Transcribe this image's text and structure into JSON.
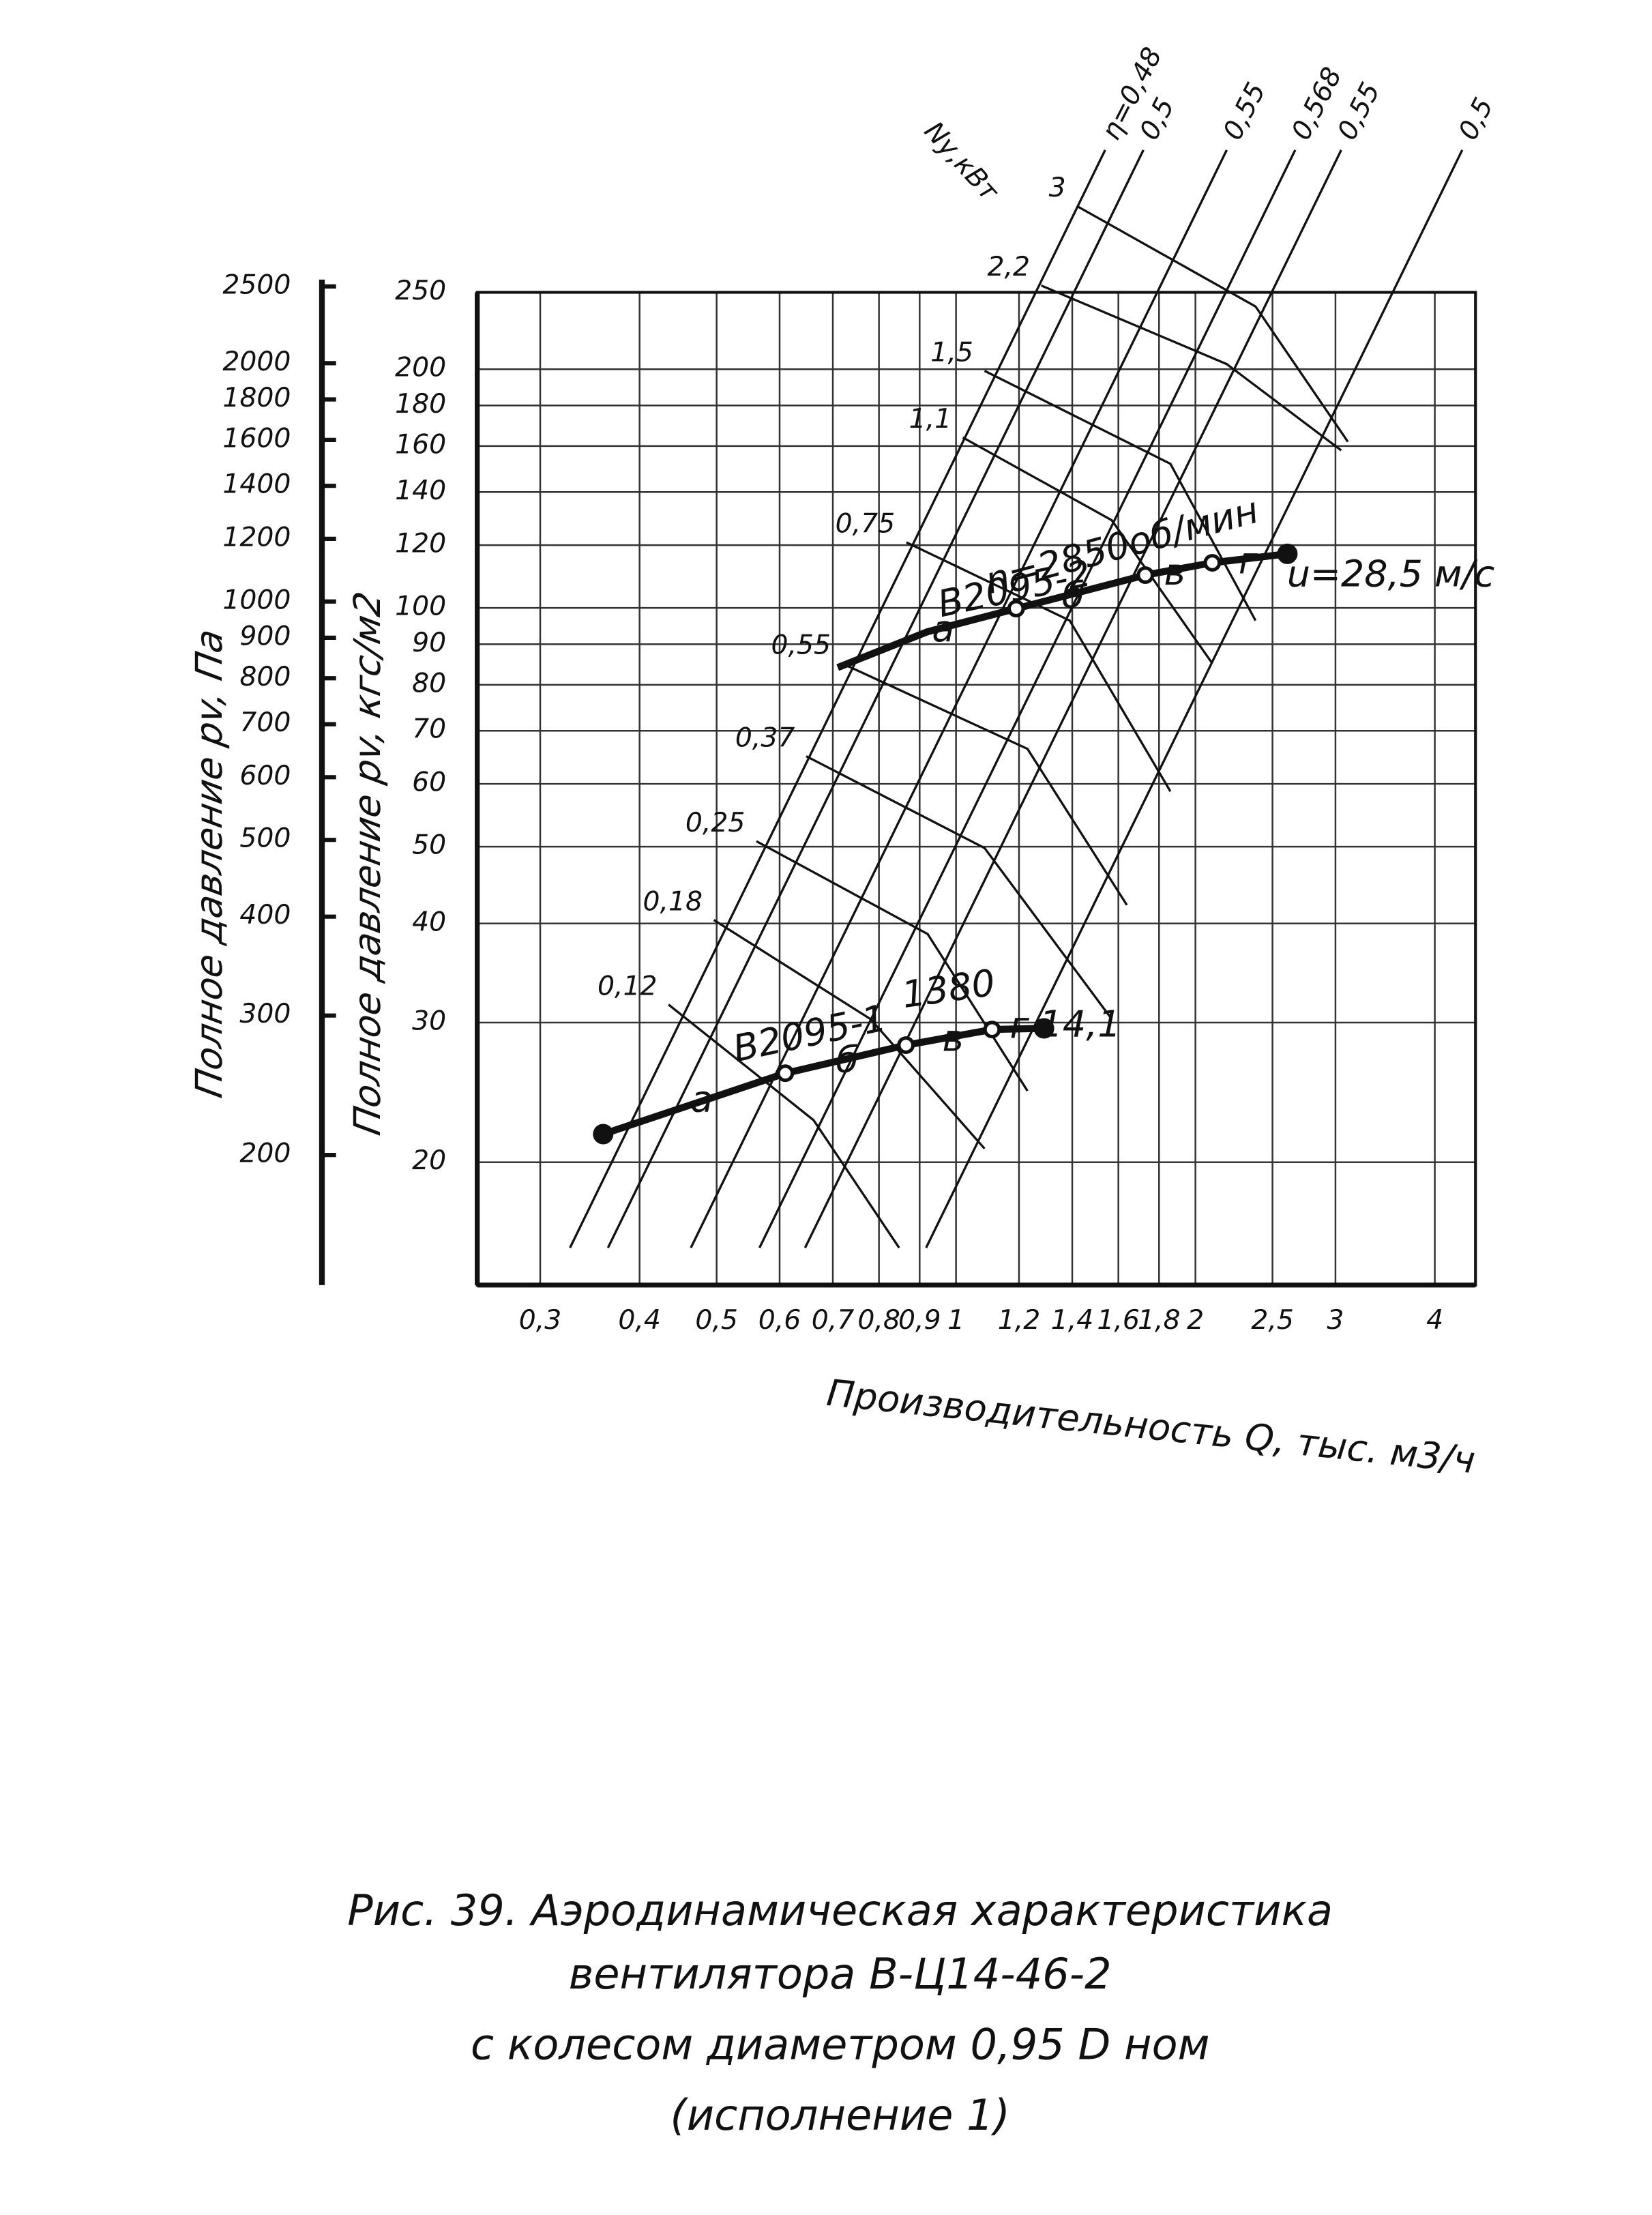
{
  "chart_data": {
    "type": "line",
    "xscale": "log",
    "yscale": "log",
    "grid": true,
    "xlabel": "Производительность  Q, тыс. м3/ч",
    "ylabel": "Полное  давление pv, кгс/м2",
    "y2label": "Полное  давление pv, Па",
    "power_axis_label": "Nу,кВт",
    "xlim": [
      0.25,
      4.5
    ],
    "ylim": [
      14,
      250
    ],
    "y2lim": [
      137,
      2550
    ],
    "xticks": [
      {
        "value": 0.3,
        "label": "0,3"
      },
      {
        "value": 0.4,
        "label": "0,4"
      },
      {
        "value": 0.5,
        "label": "0,5"
      },
      {
        "value": 0.6,
        "label": "0,6"
      },
      {
        "value": 0.7,
        "label": "0,7"
      },
      {
        "value": 0.8,
        "label": "0,8"
      },
      {
        "value": 0.9,
        "label": "0,9"
      },
      1,
      {
        "value": 1.2,
        "label": "1,2"
      },
      {
        "value": 1.4,
        "label": "1,4"
      },
      {
        "value": 1.6,
        "label": "1,6"
      },
      {
        "value": 1.8,
        "label": "1,8"
      },
      2,
      {
        "value": 2.5,
        "label": "2,5"
      },
      3,
      4
    ],
    "yticks": [
      20,
      30,
      40,
      50,
      60,
      70,
      80,
      90,
      100,
      120,
      140,
      160,
      180,
      200,
      250
    ],
    "y2ticks": [
      200,
      300,
      400,
      500,
      600,
      700,
      800,
      900,
      1000,
      1200,
      1400,
      1600,
      1800,
      2000,
      2500
    ],
    "series": [
      {
        "name": "В2095-1",
        "color": "#111111",
        "x": [
          0.36,
          0.61,
          0.865,
          1.11,
          1.29
        ],
        "values": [
          21.7,
          25.9,
          28.1,
          29.4,
          29.5
        ],
        "markers": [
          "filled",
          "open",
          "open",
          "open",
          "filled"
        ],
        "letters": [
          "а",
          "б",
          "в",
          "г"
        ],
        "speed_label": "1380",
        "end_label": "14,1"
      },
      {
        "name": "В2095-2",
        "color": "#111111",
        "x": [
          0.71,
          0.92,
          1.19,
          1.73,
          2.1,
          2.61
        ],
        "values": [
          84.1,
          93.3,
          99.8,
          110,
          114,
          117
        ],
        "markers": [
          "none",
          "none",
          "open",
          "open",
          "open",
          "filled"
        ],
        "letters": [
          "а",
          "б",
          "в",
          "г"
        ],
        "speed_label": "n=2850об/мин",
        "end_label": "u=28,5 м/с"
      }
    ],
    "efficiency_lines": [
      {
        "label": "η=0,48",
        "x": [
          0.327,
          1.54
        ],
        "y": [
          15.6,
          378
        ]
      },
      {
        "label": "0,5",
        "x": [
          0.365,
          1.72
        ],
        "y": [
          15.6,
          378
        ]
      },
      {
        "label": "0,55",
        "x": [
          0.464,
          2.19
        ],
        "y": [
          15.6,
          378
        ]
      },
      {
        "label": "0,568",
        "x": [
          0.566,
          2.67
        ],
        "y": [
          15.6,
          378
        ]
      },
      {
        "label": "0,55",
        "x": [
          0.646,
          3.05
        ],
        "y": [
          15.6,
          378
        ]
      },
      {
        "label": "0,5",
        "x": [
          0.917,
          4.33
        ],
        "y": [
          15.6,
          378
        ]
      }
    ],
    "power_curves": [
      {
        "label": "0,12",
        "x": [
          0.435,
          0.662,
          0.848
        ],
        "y": [
          31.6,
          22.6,
          15.6
        ]
      },
      {
        "label": "0,18",
        "x": [
          0.496,
          0.781,
          1.086
        ],
        "y": [
          40.4,
          30.3,
          20.8
        ]
      },
      {
        "label": "0,25",
        "x": [
          0.561,
          0.921,
          1.23
        ],
        "y": [
          50.8,
          38.8,
          24.6
        ]
      },
      {
        "label": "0,37",
        "x": [
          0.648,
          1.086,
          1.57
        ],
        "y": [
          65.0,
          49.8,
          30.3
        ]
      },
      {
        "label": "0,55",
        "x": [
          0.719,
          1.23,
          1.64
        ],
        "y": [
          85.1,
          66.4,
          42.2
        ]
      },
      {
        "label": "0,75",
        "x": [
          0.866,
          1.39,
          1.86
        ],
        "y": [
          121,
          96.4,
          58.7
        ]
      },
      {
        "label": "1,1",
        "x": [
          1.02,
          1.57,
          2.1
        ],
        "y": [
          164,
          129,
          85.1
        ]
      },
      {
        "label": "1,5",
        "x": [
          1.086,
          1.86,
          2.38
        ],
        "y": [
          199,
          152,
          96.4
        ]
      },
      {
        "label": "2,2",
        "x": [
          1.28,
          2.19,
          3.05
        ],
        "y": [
          255,
          203,
          158
        ]
      },
      {
        "label": "3",
        "x": [
          1.42,
          2.38,
          3.11
        ],
        "y": [
          321,
          240,
          162
        ]
      }
    ],
    "caption": [
      "Рис. 39. Аэродинамическая    характеристика",
      "вентилятора          В-Ц14-46-2",
      "с  колесом    диаметром    0,95  D ном",
      "(исполнение 1)"
    ]
  }
}
